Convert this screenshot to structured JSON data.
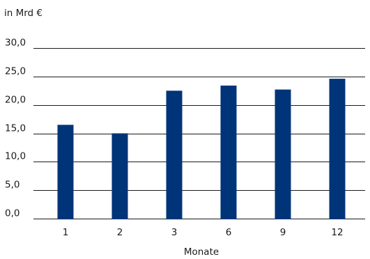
{
  "chart_data": {
    "type": "bar",
    "unit_label": "in Mrd €",
    "xlabel": "Monate",
    "categories": [
      "1",
      "2",
      "3",
      "6",
      "9",
      "12"
    ],
    "values": [
      16.5,
      15.0,
      22.5,
      23.4,
      22.7,
      24.6
    ],
    "ylim": [
      0,
      30
    ],
    "yticks": [
      "0,0",
      "5,0",
      "10,0",
      "15,0",
      "20,0",
      "25,0",
      "30,0"
    ],
    "grid": true,
    "bar_color": "#003478"
  }
}
